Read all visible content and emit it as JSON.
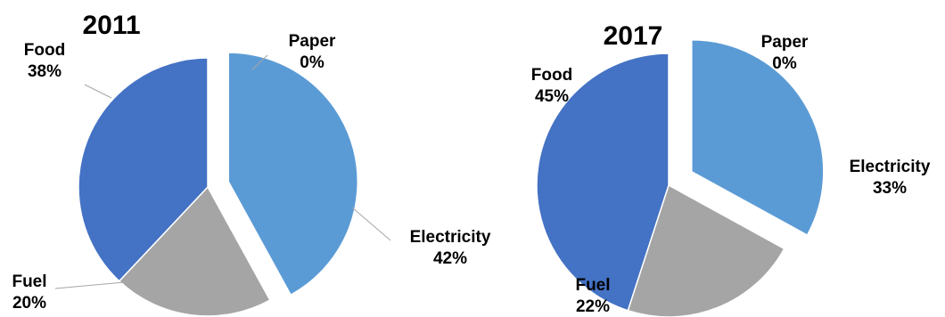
{
  "chart_data": [
    {
      "type": "pie",
      "title": "2011",
      "slices": [
        {
          "label": "Electricity",
          "value": 42,
          "display": "42%",
          "color": "#5B9BD5",
          "exploded": true
        },
        {
          "label": "Fuel",
          "value": 20,
          "display": "20%",
          "color": "#A5A5A5",
          "exploded": false
        },
        {
          "label": "Food",
          "value": 38,
          "display": "38%",
          "color": "#4472C4",
          "exploded": false
        },
        {
          "label": "Paper",
          "value": 0,
          "display": "0%",
          "color": "#FFC000",
          "exploded": false
        }
      ],
      "legend": "none",
      "label_style": "outside with leader lines"
    },
    {
      "type": "pie",
      "title": "2017",
      "slices": [
        {
          "label": "Electricity",
          "value": 33,
          "display": "33%",
          "color": "#5B9BD5",
          "exploded": true
        },
        {
          "label": "Fuel",
          "value": 22,
          "display": "22%",
          "color": "#A5A5A5",
          "exploded": false
        },
        {
          "label": "Food",
          "value": 45,
          "display": "45%",
          "color": "#4472C4",
          "exploded": false
        },
        {
          "label": "Paper",
          "value": 0,
          "display": "0%",
          "color": "#FFC000",
          "exploded": false
        }
      ],
      "legend": "none",
      "label_style": "outside"
    }
  ]
}
